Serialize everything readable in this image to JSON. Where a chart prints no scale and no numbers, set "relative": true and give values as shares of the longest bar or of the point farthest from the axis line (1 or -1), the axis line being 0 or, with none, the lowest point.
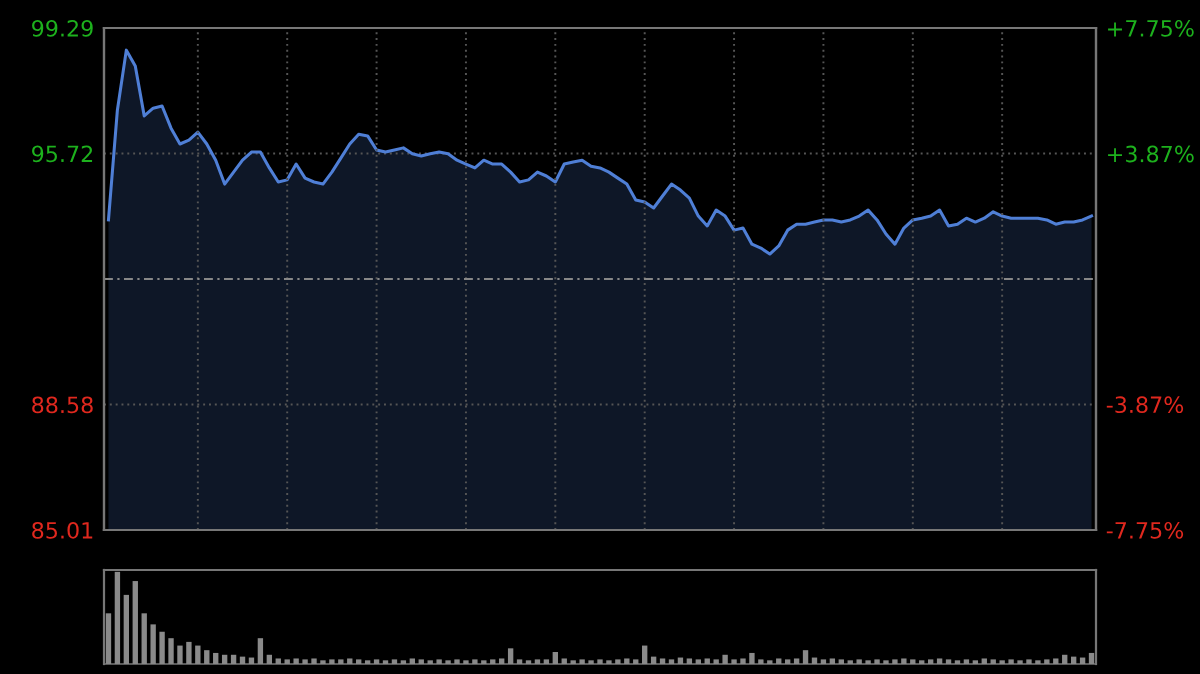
{
  "chart_data": [
    {
      "type": "area",
      "categories": [
        null,
        null,
        null,
        null,
        null,
        null,
        null,
        null,
        null,
        null,
        null,
        null,
        null,
        null,
        null,
        null,
        null,
        null,
        null,
        null,
        null,
        null,
        null,
        null,
        null,
        null,
        null,
        null,
        null,
        null,
        null,
        null,
        null,
        null,
        null,
        null,
        null,
        null,
        null,
        null,
        null,
        null,
        null,
        null,
        null,
        null,
        null,
        null,
        null,
        null,
        null,
        null,
        null,
        null,
        null,
        null,
        null,
        null,
        null,
        null,
        null,
        null,
        null,
        null,
        null,
        null,
        null,
        null,
        null,
        null,
        null,
        null,
        null,
        null,
        null,
        null,
        null,
        null,
        null,
        null,
        null,
        null,
        null,
        null,
        null,
        null,
        null,
        null,
        null,
        null,
        null,
        null,
        null,
        null,
        null,
        null,
        null,
        null,
        null,
        null,
        null,
        null,
        null,
        null,
        null,
        null,
        null,
        null,
        null,
        null,
        null
      ],
      "series": [
        {
          "color": "#4f7fd6",
          "values": [
            93.83,
            96.96,
            98.66,
            98.21,
            96.79,
            97.01,
            97.07,
            96.44,
            95.99,
            96.1,
            96.33,
            95.99,
            95.53,
            94.85,
            95.19,
            95.53,
            95.76,
            95.76,
            95.31,
            94.91,
            94.97,
            95.42,
            95.02,
            94.91,
            94.85,
            95.19,
            95.59,
            95.99,
            96.27,
            96.22,
            95.82,
            95.76,
            95.82,
            95.88,
            95.71,
            95.65,
            95.71,
            95.76,
            95.71,
            95.53,
            95.42,
            95.31,
            95.53,
            95.42,
            95.42,
            95.19,
            94.91,
            94.97,
            95.19,
            95.08,
            94.91,
            95.42,
            95.48,
            95.53,
            95.36,
            95.31,
            95.19,
            95.02,
            94.85,
            94.4,
            94.34,
            94.17,
            94.51,
            94.85,
            94.68,
            94.45,
            93.94,
            93.66,
            94.11,
            93.94,
            93.54,
            93.6,
            93.14,
            93.03,
            92.86,
            93.09,
            93.54,
            93.71,
            93.71,
            93.77,
            93.83,
            93.83,
            93.77,
            93.83,
            93.94,
            94.11,
            93.83,
            93.43,
            93.14,
            93.6,
            93.83,
            93.88,
            93.94,
            94.11,
            93.66,
            93.71,
            93.88,
            93.77,
            93.88,
            94.06,
            93.94,
            93.88,
            93.88,
            93.88,
            93.88,
            93.83,
            93.71,
            93.77,
            93.77,
            93.83,
            93.94
          ]
        }
      ],
      "ylim": [
        85.01,
        99.29
      ],
      "yticks": [
        85.01,
        88.58,
        95.72,
        99.29
      ],
      "y2lim": [
        -7.75,
        7.75
      ],
      "y2ticks": [
        {
          "value": -7.75,
          "label": "-7.75%"
        },
        {
          "value": -3.87,
          "label": "-3.87%"
        },
        {
          "value": 3.87,
          "label": "+3.87%"
        },
        {
          "value": 7.75,
          "label": "+7.75%"
        }
      ],
      "ref_lines": [
        {
          "axis": "y",
          "value": 92.15
        }
      ],
      "grid": true,
      "tick_labels": "y"
    },
    {
      "type": "bar",
      "relative": true,
      "categories": [
        null,
        null,
        null,
        null,
        null,
        null,
        null,
        null,
        null,
        null,
        null,
        null,
        null,
        null,
        null,
        null,
        null,
        null,
        null,
        null,
        null,
        null,
        null,
        null,
        null,
        null,
        null,
        null,
        null,
        null,
        null,
        null,
        null,
        null,
        null,
        null,
        null,
        null,
        null,
        null,
        null,
        null,
        null,
        null,
        null,
        null,
        null,
        null,
        null,
        null,
        null,
        null,
        null,
        null,
        null,
        null,
        null,
        null,
        null,
        null,
        null,
        null,
        null,
        null,
        null,
        null,
        null,
        null,
        null,
        null,
        null,
        null,
        null,
        null,
        null,
        null,
        null,
        null,
        null,
        null,
        null,
        null,
        null,
        null,
        null,
        null,
        null,
        null,
        null,
        null,
        null,
        null,
        null,
        null,
        null,
        null,
        null,
        null,
        null,
        null,
        null,
        null,
        null,
        null,
        null,
        null,
        null,
        null,
        null,
        null,
        null
      ],
      "series": [
        {
          "color": "#8a8a8a",
          "values": [
            0.55,
            1.0,
            0.75,
            0.9,
            0.55,
            0.43,
            0.35,
            0.28,
            0.2,
            0.24,
            0.2,
            0.15,
            0.12,
            0.1,
            0.1,
            0.08,
            0.07,
            0.28,
            0.1,
            0.06,
            0.05,
            0.06,
            0.05,
            0.06,
            0.04,
            0.05,
            0.05,
            0.06,
            0.05,
            0.04,
            0.05,
            0.04,
            0.05,
            0.04,
            0.06,
            0.05,
            0.04,
            0.05,
            0.04,
            0.05,
            0.04,
            0.05,
            0.04,
            0.05,
            0.06,
            0.17,
            0.05,
            0.04,
            0.05,
            0.05,
            0.13,
            0.06,
            0.04,
            0.05,
            0.04,
            0.05,
            0.04,
            0.05,
            0.06,
            0.05,
            0.2,
            0.08,
            0.06,
            0.05,
            0.07,
            0.06,
            0.05,
            0.06,
            0.05,
            0.1,
            0.05,
            0.06,
            0.12,
            0.05,
            0.04,
            0.06,
            0.05,
            0.06,
            0.15,
            0.07,
            0.05,
            0.06,
            0.05,
            0.04,
            0.05,
            0.04,
            0.05,
            0.04,
            0.05,
            0.06,
            0.05,
            0.04,
            0.05,
            0.06,
            0.05,
            0.04,
            0.05,
            0.04,
            0.06,
            0.05,
            0.04,
            0.05,
            0.04,
            0.05,
            0.04,
            0.05,
            0.06,
            0.1,
            0.08,
            0.07,
            0.12
          ]
        }
      ]
    }
  ]
}
